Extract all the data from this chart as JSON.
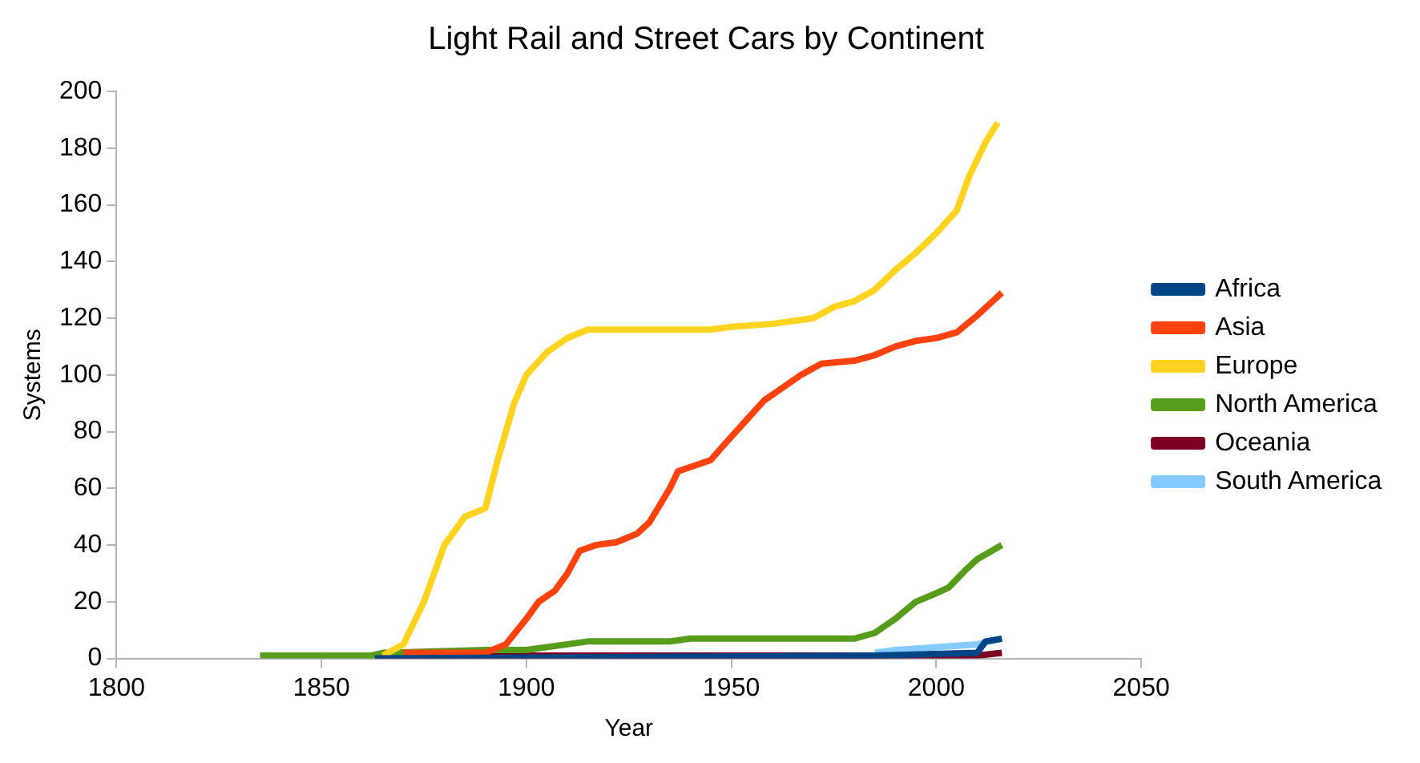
{
  "chart_data": {
    "type": "line",
    "title": "Light Rail and Street Cars by Continent",
    "xlabel": "Year",
    "ylabel": "Systems",
    "xlim": [
      1800,
      2050
    ],
    "xticks": [
      1800,
      1850,
      1900,
      1950,
      2000,
      2050
    ],
    "ylim": [
      0,
      200
    ],
    "yticks": [
      0,
      20,
      40,
      60,
      80,
      100,
      120,
      140,
      160,
      180,
      200
    ],
    "grid": false,
    "legend": "right",
    "marker": "none",
    "line_style": "solid",
    "series": [
      {
        "name": "Africa",
        "color": "#004586",
        "x": [
          1863,
          1985,
          2010,
          2012,
          2016
        ],
        "values": [
          0,
          1,
          2,
          6,
          7
        ]
      },
      {
        "name": "Asia",
        "color": "#ff420e",
        "x": [
          1870,
          1890,
          1895,
          1900,
          1903,
          1907,
          1910,
          1913,
          1917,
          1922,
          1927,
          1930,
          1935,
          1937,
          1945,
          1948,
          1953,
          1958,
          1963,
          1967,
          1972,
          1980,
          1985,
          1990,
          1995,
          2000,
          2005,
          2010,
          2013,
          2016
        ],
        "values": [
          2,
          2,
          5,
          14,
          20,
          24,
          30,
          38,
          40,
          41,
          44,
          48,
          60,
          66,
          70,
          75,
          83,
          91,
          96,
          100,
          104,
          105,
          107,
          110,
          112,
          113,
          115,
          121,
          125,
          129
        ]
      },
      {
        "name": "Europe",
        "color": "#ffd320",
        "x": [
          1865,
          1870,
          1875,
          1880,
          1885,
          1890,
          1893,
          1897,
          1900,
          1905,
          1910,
          1915,
          1945,
          1950,
          1960,
          1970,
          1975,
          1980,
          1985,
          1990,
          1995,
          2000,
          2005,
          2008,
          2010,
          2012,
          2015
        ],
        "values": [
          1,
          5,
          20,
          40,
          50,
          53,
          70,
          90,
          100,
          108,
          113,
          116,
          116,
          117,
          118,
          120,
          124,
          126,
          130,
          137,
          143,
          150,
          158,
          170,
          176,
          182,
          189
        ]
      },
      {
        "name": "North America",
        "color": "#579d1c",
        "x": [
          1835,
          1862,
          1865,
          1890,
          1900,
          1910,
          1915,
          1935,
          1940,
          1980,
          1985,
          1990,
          1995,
          2000,
          2003,
          2007,
          2010,
          2016
        ],
        "values": [
          1,
          1,
          2,
          3,
          3,
          5,
          6,
          6,
          7,
          7,
          9,
          14,
          20,
          23,
          25,
          31,
          35,
          40
        ]
      },
      {
        "name": "Oceania",
        "color": "#7e0021",
        "x": [
          1863,
          2010,
          2016
        ],
        "values": [
          1,
          1,
          2
        ]
      },
      {
        "name": "South America",
        "color": "#83caff",
        "x": [
          1985,
          1990,
          2000,
          2010,
          2016
        ],
        "values": [
          2,
          3,
          4,
          5,
          7
        ]
      }
    ]
  }
}
